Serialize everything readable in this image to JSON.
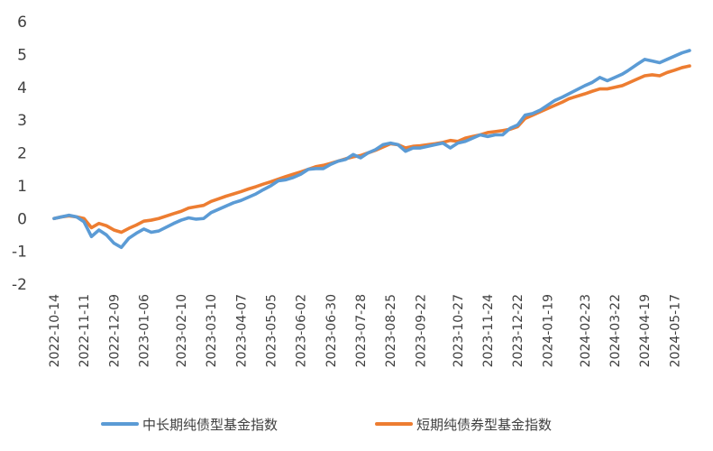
{
  "chart_data": {
    "type": "line",
    "title": "",
    "xlabel": "",
    "ylabel": "",
    "ylim": [
      -2,
      6
    ],
    "yticks": [
      "-2",
      "-1",
      "0",
      "1",
      "2",
      "3",
      "4",
      "5",
      "6"
    ],
    "grid": false,
    "legend_position": "bottom",
    "x_tick_labels": [
      "2022-10-14",
      "2022-11-11",
      "2022-12-09",
      "2023-01-06",
      "2023-02-10",
      "2023-03-10",
      "2023-04-07",
      "2023-05-05",
      "2023-06-02",
      "2023-06-30",
      "2023-07-28",
      "2023-08-25",
      "2023-09-22",
      "2023-10-27",
      "2023-11-24",
      "2023-12-22",
      "2024-01-19",
      "2024-02-23",
      "2024-03-22",
      "2024-04-19",
      "2024-05-17"
    ],
    "x_dates": [
      "2022-10-14",
      "2022-10-21",
      "2022-10-28",
      "2022-11-04",
      "2022-11-11",
      "2022-11-18",
      "2022-11-25",
      "2022-12-02",
      "2022-12-09",
      "2022-12-16",
      "2022-12-23",
      "2022-12-30",
      "2023-01-06",
      "2023-01-13",
      "2023-01-20",
      "2023-02-03",
      "2023-02-10",
      "2023-02-17",
      "2023-02-24",
      "2023-03-03",
      "2023-03-10",
      "2023-03-17",
      "2023-03-24",
      "2023-03-31",
      "2023-04-07",
      "2023-04-14",
      "2023-04-21",
      "2023-04-28",
      "2023-05-05",
      "2023-05-12",
      "2023-05-19",
      "2023-05-26",
      "2023-06-02",
      "2023-06-09",
      "2023-06-16",
      "2023-06-23",
      "2023-06-30",
      "2023-07-07",
      "2023-07-14",
      "2023-07-21",
      "2023-07-28",
      "2023-08-04",
      "2023-08-11",
      "2023-08-18",
      "2023-08-25",
      "2023-09-01",
      "2023-09-08",
      "2023-09-15",
      "2023-09-22",
      "2023-10-06",
      "2023-10-13",
      "2023-10-20",
      "2023-10-27",
      "2023-11-03",
      "2023-11-10",
      "2023-11-17",
      "2023-11-24",
      "2023-12-01",
      "2023-12-08",
      "2023-12-15",
      "2023-12-22",
      "2023-12-29",
      "2024-01-05",
      "2024-01-12",
      "2024-01-19",
      "2024-01-26",
      "2024-02-02",
      "2024-02-08",
      "2024-02-23",
      "2024-03-01",
      "2024-03-08",
      "2024-03-15",
      "2024-03-22",
      "2024-03-29",
      "2024-04-03",
      "2024-04-12",
      "2024-04-19",
      "2024-04-26",
      "2024-05-03",
      "2024-05-10",
      "2024-05-17",
      "2024-05-24",
      "2024-05-31"
    ],
    "series": [
      {
        "name": "中长期纯债型基金指数",
        "color": "#5B9BD5",
        "values": [
          0.0,
          0.05,
          0.1,
          0.05,
          -0.1,
          -0.55,
          -0.35,
          -0.5,
          -0.75,
          -0.88,
          -0.6,
          -0.45,
          -0.32,
          -0.42,
          -0.38,
          -0.15,
          -0.05,
          0.02,
          -0.02,
          0.0,
          0.18,
          0.28,
          0.38,
          0.48,
          0.55,
          0.65,
          0.75,
          0.88,
          1.0,
          1.15,
          1.18,
          1.25,
          1.35,
          1.5,
          1.52,
          1.52,
          1.65,
          1.75,
          1.8,
          1.95,
          1.85,
          2.0,
          2.1,
          2.25,
          2.3,
          2.25,
          2.05,
          2.15,
          2.15,
          2.25,
          2.3,
          2.15,
          2.3,
          2.35,
          2.45,
          2.55,
          2.5,
          2.55,
          2.55,
          2.75,
          2.85,
          3.15,
          3.2,
          3.3,
          3.45,
          3.6,
          3.7,
          3.8,
          4.05,
          4.15,
          4.3,
          4.2,
          4.3,
          4.4,
          4.5,
          4.7,
          4.85,
          4.8,
          4.75,
          4.85,
          4.95,
          5.05,
          5.12
        ]
      },
      {
        "name": "短期纯债券型基金指数",
        "color": "#ED7D31",
        "values": [
          0.0,
          0.05,
          0.08,
          0.05,
          0.0,
          -0.28,
          -0.15,
          -0.22,
          -0.35,
          -0.42,
          -0.3,
          -0.2,
          -0.08,
          -0.05,
          0.0,
          0.15,
          0.22,
          0.32,
          0.36,
          0.4,
          0.52,
          0.6,
          0.68,
          0.75,
          0.82,
          0.9,
          0.97,
          1.05,
          1.12,
          1.2,
          1.28,
          1.35,
          1.42,
          1.5,
          1.58,
          1.62,
          1.68,
          1.75,
          1.82,
          1.88,
          1.92,
          2.0,
          2.08,
          2.18,
          2.28,
          2.25,
          2.15,
          2.2,
          2.22,
          2.28,
          2.32,
          2.38,
          2.35,
          2.45,
          2.5,
          2.55,
          2.62,
          2.65,
          2.68,
          2.72,
          2.8,
          3.05,
          3.15,
          3.25,
          3.35,
          3.45,
          3.55,
          3.65,
          3.8,
          3.88,
          3.95,
          3.95,
          4.0,
          4.05,
          4.12,
          4.25,
          4.35,
          4.38,
          4.35,
          4.45,
          4.52,
          4.6,
          4.65
        ]
      }
    ]
  }
}
